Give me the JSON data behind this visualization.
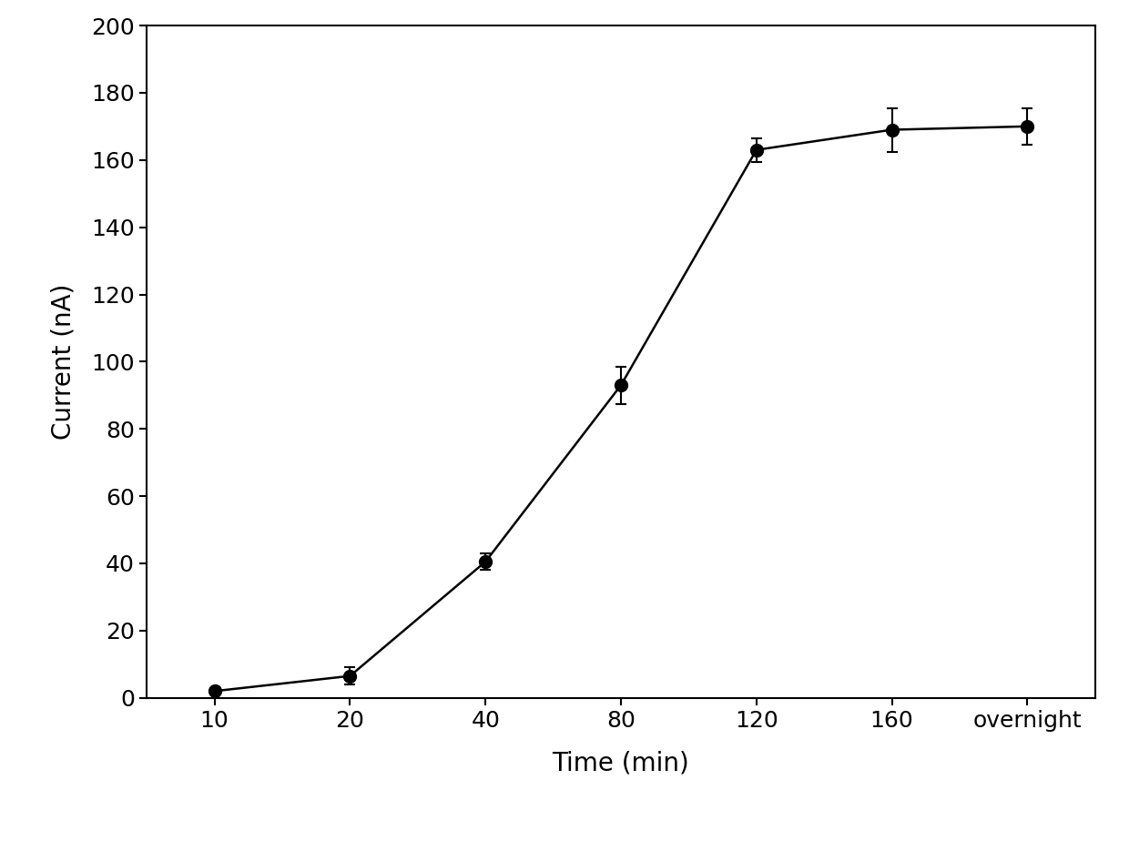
{
  "x_positions": [
    0,
    1,
    2,
    3,
    4,
    5,
    6
  ],
  "x_labels": [
    "10",
    "20",
    "40",
    "80",
    "120",
    "160",
    "overnight"
  ],
  "y_values": [
    2.0,
    6.5,
    40.5,
    93.0,
    163.0,
    169.0,
    170.0
  ],
  "y_errors": [
    1.0,
    2.5,
    2.5,
    5.5,
    3.5,
    6.5,
    5.5
  ],
  "xlabel": "Time (min)",
  "ylabel": "Current (nA)",
  "ylim": [
    0,
    200
  ],
  "yticks": [
    0,
    20,
    40,
    60,
    80,
    100,
    120,
    140,
    160,
    180,
    200
  ],
  "background_color": "#ffffff",
  "line_color": "#000000",
  "marker_color": "#000000",
  "marker_size": 10,
  "line_width": 1.8,
  "capsize": 4,
  "xlabel_fontsize": 20,
  "ylabel_fontsize": 20,
  "tick_fontsize": 18
}
